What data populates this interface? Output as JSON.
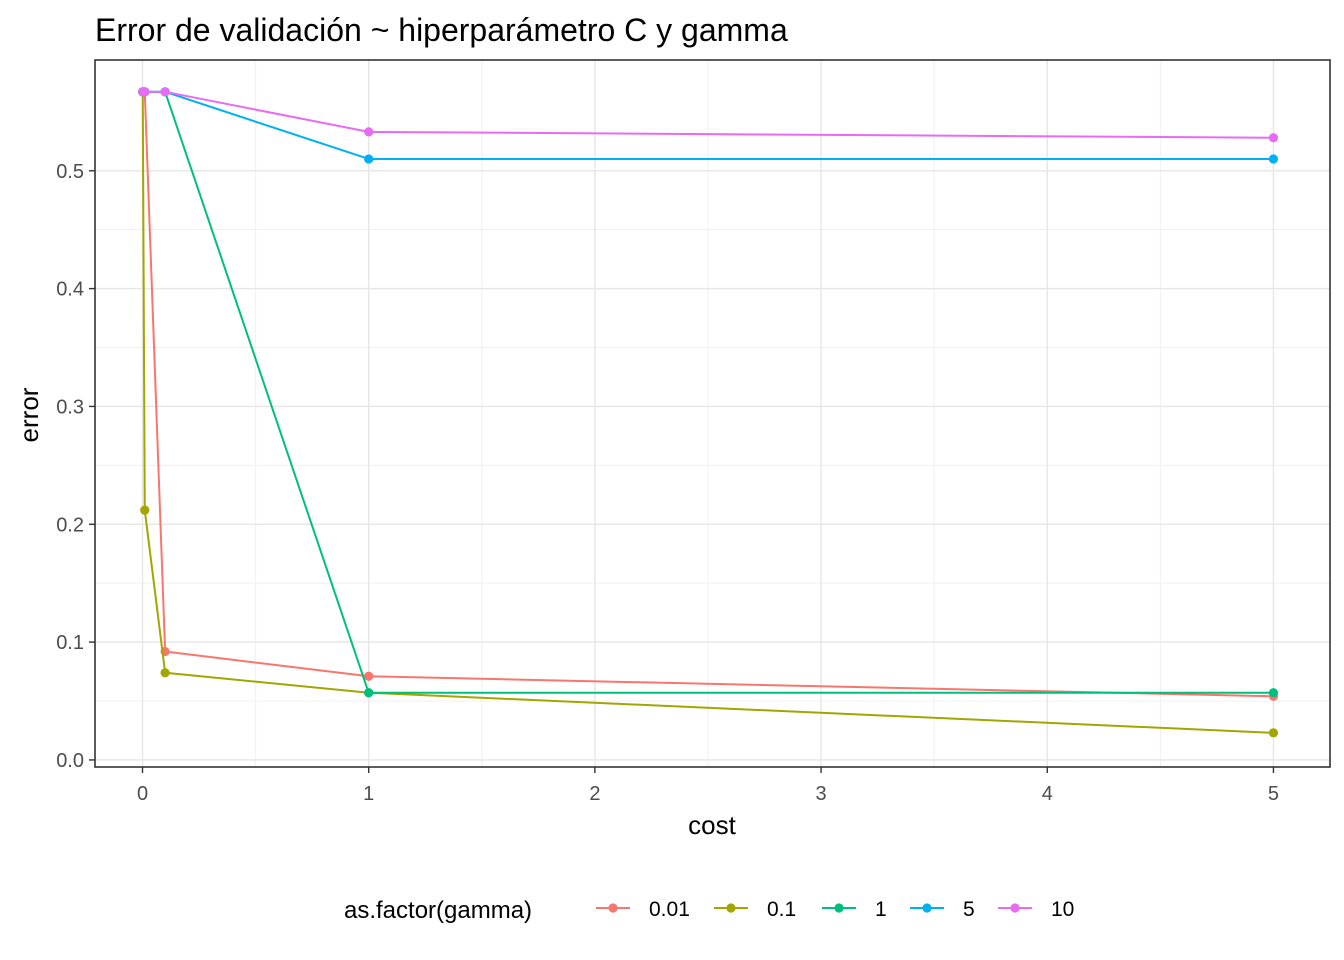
{
  "chart_data": {
    "type": "line",
    "title": "Error de validación ~ hiperparámetro C y gamma",
    "xlabel": "cost",
    "ylabel": "error",
    "xlim": [
      -0.21,
      5.25
    ],
    "ylim": [
      -0.006,
      0.594
    ],
    "x_ticks": [
      0,
      1,
      2,
      3,
      4,
      5
    ],
    "x_tick_labels": [
      "0",
      "1",
      "2",
      "3",
      "4",
      "5"
    ],
    "y_ticks": [
      0.0,
      0.1,
      0.2,
      0.3,
      0.4,
      0.5
    ],
    "y_tick_labels": [
      "0.0",
      "0.1",
      "0.2",
      "0.3",
      "0.4",
      "0.5"
    ],
    "grid": true,
    "legend_title": "as.factor(gamma)",
    "legend_position": "bottom",
    "series": [
      {
        "name": "0.01",
        "color": "#F8766D",
        "points": [
          [
            0.001,
            0.567
          ],
          [
            0.01,
            0.567
          ],
          [
            0.1,
            0.092
          ],
          [
            1,
            0.071
          ],
          [
            5,
            0.054
          ]
        ]
      },
      {
        "name": "0.1",
        "color": "#A3A500",
        "points": [
          [
            0.001,
            0.567
          ],
          [
            0.01,
            0.212
          ],
          [
            0.1,
            0.074
          ],
          [
            1,
            0.057
          ],
          [
            5,
            0.023
          ]
        ]
      },
      {
        "name": "1",
        "color": "#00BF7D",
        "points": [
          [
            0.001,
            0.567
          ],
          [
            0.01,
            0.567
          ],
          [
            0.1,
            0.567
          ],
          [
            1,
            0.057
          ],
          [
            5,
            0.057
          ]
        ]
      },
      {
        "name": "5",
        "color": "#00B0F6",
        "points": [
          [
            0.001,
            0.567
          ],
          [
            0.01,
            0.567
          ],
          [
            0.1,
            0.567
          ],
          [
            1,
            0.51
          ],
          [
            5,
            0.51
          ]
        ]
      },
      {
        "name": "10",
        "color": "#E76BF3",
        "points": [
          [
            0.001,
            0.567
          ],
          [
            0.01,
            0.567
          ],
          [
            0.1,
            0.567
          ],
          [
            1,
            0.533
          ],
          [
            5,
            0.528
          ]
        ]
      }
    ]
  }
}
